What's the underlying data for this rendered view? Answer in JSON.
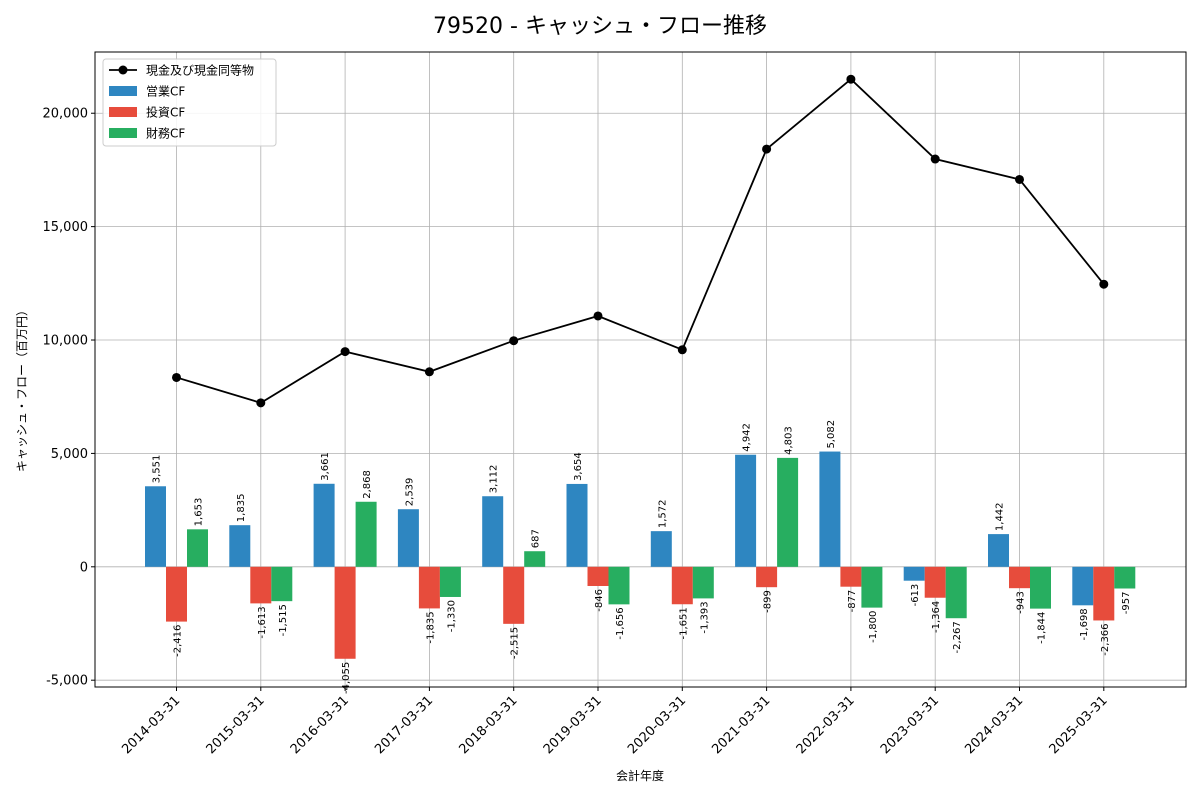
{
  "chart_data": {
    "type": "bar",
    "title": "79520 - キャッシュ・フロー推移",
    "xlabel": "会計年度",
    "ylabel": "キャッシュ・フロー（百万円）",
    "ylim": [
      -5300,
      22700
    ],
    "yticks": [
      -5000,
      0,
      5000,
      10000,
      15000,
      20000
    ],
    "ytick_labels": [
      "-5,000",
      "0",
      "5,000",
      "10,000",
      "15,000",
      "20,000"
    ],
    "grid": true,
    "legend_position": "top-left",
    "categories": [
      "2014-03-31",
      "2015-03-31",
      "2016-03-31",
      "2017-03-31",
      "2018-03-31",
      "2019-03-31",
      "2020-03-31",
      "2021-03-31",
      "2022-03-31",
      "2023-03-31",
      "2024-03-31",
      "2025-03-31"
    ],
    "line": {
      "name": "現金及び現金同等物",
      "color": "#000000",
      "values": [
        8350,
        7230,
        9490,
        8600,
        9970,
        11060,
        9570,
        18420,
        21500,
        17980,
        17080,
        12460
      ]
    },
    "series": [
      {
        "name": "営業CF",
        "color": "#2e86c1",
        "values": [
          3551,
          1835,
          3661,
          2539,
          3112,
          3654,
          1572,
          4942,
          5082,
          -613,
          1442,
          -1698
        ],
        "labels": [
          "3,551",
          "1,835",
          "3,661",
          "2,539",
          "3,112",
          "3,654",
          "1,572",
          "4,942",
          "5,082",
          "-613",
          "1,442",
          "-1,698"
        ]
      },
      {
        "name": "投資CF",
        "color": "#e74c3c",
        "values": [
          -2416,
          -1613,
          -4055,
          -1835,
          -2515,
          -846,
          -1651,
          -899,
          -877,
          -1364,
          -943,
          -2366
        ],
        "labels": [
          "-2,416",
          "-1,613",
          "-4,055",
          "-1,835",
          "-2,515",
          "-846",
          "-1,651",
          "-899",
          "-877",
          "-1,364",
          "-943",
          "-2,366"
        ]
      },
      {
        "name": "財務CF",
        "color": "#27ae60",
        "values": [
          1653,
          -1515,
          2868,
          -1330,
          687,
          -1656,
          -1393,
          4803,
          -1800,
          -2267,
          -1844,
          -957
        ],
        "labels": [
          "1,653",
          "-1,515",
          "2,868",
          "-1,330",
          "687",
          "-1,656",
          "-1,393",
          "4,803",
          "-1,800",
          "-2,267",
          "-1,844",
          "-957"
        ]
      }
    ]
  }
}
